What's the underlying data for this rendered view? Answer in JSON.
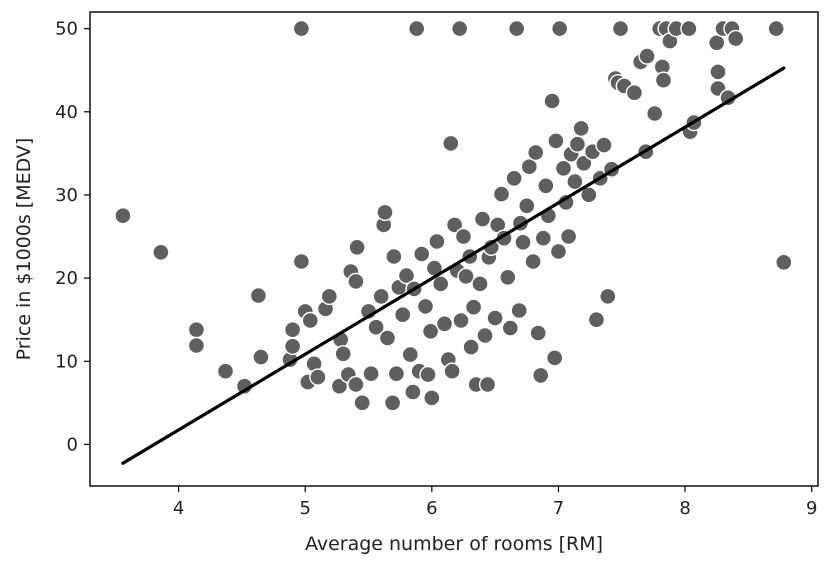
{
  "chart_data": {
    "type": "scatter",
    "title": "",
    "xlabel": "Average number of rooms [RM]",
    "ylabel": "Price in $1000s [MEDV]",
    "xlim": [
      3.3,
      9.05
    ],
    "ylim": [
      -5,
      52
    ],
    "xticks": [
      4,
      5,
      6,
      7,
      8,
      9
    ],
    "yticks": [
      0,
      10,
      20,
      30,
      40,
      50
    ],
    "grid": false,
    "series": [
      {
        "name": "observations",
        "points": [
          [
            3.56,
            27.5
          ],
          [
            3.86,
            23.1
          ],
          [
            4.14,
            13.8
          ],
          [
            4.14,
            11.9
          ],
          [
            4.37,
            8.8
          ],
          [
            4.52,
            7.0
          ],
          [
            4.63,
            17.9
          ],
          [
            4.65,
            10.5
          ],
          [
            4.88,
            10.2
          ],
          [
            4.9,
            11.8
          ],
          [
            4.9,
            13.8
          ],
          [
            4.97,
            22.0
          ],
          [
            4.97,
            50.0
          ],
          [
            5.0,
            16.0
          ],
          [
            5.02,
            7.5
          ],
          [
            5.04,
            14.9
          ],
          [
            5.07,
            9.7
          ],
          [
            5.1,
            8.1
          ],
          [
            5.16,
            16.3
          ],
          [
            5.19,
            17.8
          ],
          [
            5.27,
            7.0
          ],
          [
            5.28,
            12.6
          ],
          [
            5.3,
            10.9
          ],
          [
            5.34,
            8.4
          ],
          [
            5.36,
            20.8
          ],
          [
            5.4,
            19.6
          ],
          [
            5.4,
            7.2
          ],
          [
            5.41,
            23.7
          ],
          [
            5.45,
            5.0
          ],
          [
            5.5,
            16.0
          ],
          [
            5.52,
            8.5
          ],
          [
            5.56,
            14.1
          ],
          [
            5.6,
            17.8
          ],
          [
            5.62,
            26.4
          ],
          [
            5.63,
            27.9
          ],
          [
            5.65,
            12.8
          ],
          [
            5.69,
            5.0
          ],
          [
            5.7,
            22.6
          ],
          [
            5.72,
            8.5
          ],
          [
            5.74,
            18.9
          ],
          [
            5.77,
            15.6
          ],
          [
            5.8,
            20.3
          ],
          [
            5.83,
            10.8
          ],
          [
            5.85,
            6.3
          ],
          [
            5.86,
            18.7
          ],
          [
            5.88,
            50.0
          ],
          [
            5.9,
            8.8
          ],
          [
            5.92,
            22.9
          ],
          [
            5.95,
            16.6
          ],
          [
            5.97,
            8.4
          ],
          [
            5.99,
            13.6
          ],
          [
            6.0,
            5.6
          ],
          [
            6.02,
            21.2
          ],
          [
            6.04,
            24.4
          ],
          [
            6.07,
            19.3
          ],
          [
            6.1,
            14.5
          ],
          [
            6.13,
            10.2
          ],
          [
            6.15,
            36.2
          ],
          [
            6.16,
            8.8
          ],
          [
            6.18,
            26.4
          ],
          [
            6.2,
            20.9
          ],
          [
            6.22,
            50.0
          ],
          [
            6.23,
            14.9
          ],
          [
            6.25,
            25.0
          ],
          [
            6.27,
            20.2
          ],
          [
            6.3,
            22.6
          ],
          [
            6.31,
            11.7
          ],
          [
            6.33,
            16.5
          ],
          [
            6.35,
            7.2
          ],
          [
            6.38,
            19.3
          ],
          [
            6.4,
            27.1
          ],
          [
            6.42,
            13.1
          ],
          [
            6.44,
            7.2
          ],
          [
            6.45,
            22.5
          ],
          [
            6.47,
            23.7
          ],
          [
            6.5,
            15.2
          ],
          [
            6.52,
            26.4
          ],
          [
            6.55,
            30.1
          ],
          [
            6.57,
            24.8
          ],
          [
            6.6,
            20.1
          ],
          [
            6.62,
            14.0
          ],
          [
            6.65,
            32.0
          ],
          [
            6.67,
            50.0
          ],
          [
            6.69,
            16.1
          ],
          [
            6.7,
            26.6
          ],
          [
            6.72,
            24.3
          ],
          [
            6.75,
            28.7
          ],
          [
            6.77,
            33.4
          ],
          [
            6.8,
            22.0
          ],
          [
            6.82,
            35.1
          ],
          [
            6.84,
            13.4
          ],
          [
            6.86,
            8.3
          ],
          [
            6.88,
            24.8
          ],
          [
            6.9,
            31.1
          ],
          [
            6.92,
            27.5
          ],
          [
            6.95,
            41.3
          ],
          [
            6.97,
            10.4
          ],
          [
            6.98,
            36.5
          ],
          [
            7.0,
            23.2
          ],
          [
            7.01,
            50.0
          ],
          [
            7.04,
            33.2
          ],
          [
            7.06,
            29.1
          ],
          [
            7.08,
            25.0
          ],
          [
            7.1,
            34.9
          ],
          [
            7.13,
            31.6
          ],
          [
            7.15,
            36.1
          ],
          [
            7.18,
            38.0
          ],
          [
            7.2,
            33.8
          ],
          [
            7.24,
            30.0
          ],
          [
            7.27,
            35.2
          ],
          [
            7.3,
            15.0
          ],
          [
            7.33,
            32.0
          ],
          [
            7.36,
            36.0
          ],
          [
            7.39,
            17.8
          ],
          [
            7.42,
            33.1
          ],
          [
            7.45,
            44.0
          ],
          [
            7.47,
            43.5
          ],
          [
            7.49,
            50.0
          ],
          [
            7.52,
            43.1
          ],
          [
            7.6,
            42.3
          ],
          [
            7.65,
            46.0
          ],
          [
            7.69,
            35.2
          ],
          [
            7.7,
            46.7
          ],
          [
            7.76,
            39.8
          ],
          [
            7.8,
            50.0
          ],
          [
            7.82,
            45.4
          ],
          [
            7.83,
            43.8
          ],
          [
            7.85,
            50.0
          ],
          [
            7.88,
            48.5
          ],
          [
            7.93,
            50.0
          ],
          [
            8.03,
            50.0
          ],
          [
            8.04,
            37.6
          ],
          [
            8.07,
            38.7
          ],
          [
            8.25,
            48.3
          ],
          [
            8.26,
            44.8
          ],
          [
            8.26,
            42.8
          ],
          [
            8.3,
            50.0
          ],
          [
            8.34,
            41.7
          ],
          [
            8.37,
            50.0
          ],
          [
            8.4,
            48.8
          ],
          [
            8.72,
            50.0
          ],
          [
            8.78,
            21.9
          ]
        ]
      }
    ],
    "regression_line": {
      "x": [
        3.56,
        8.78
      ],
      "y": [
        -2.26,
        45.25
      ]
    }
  }
}
